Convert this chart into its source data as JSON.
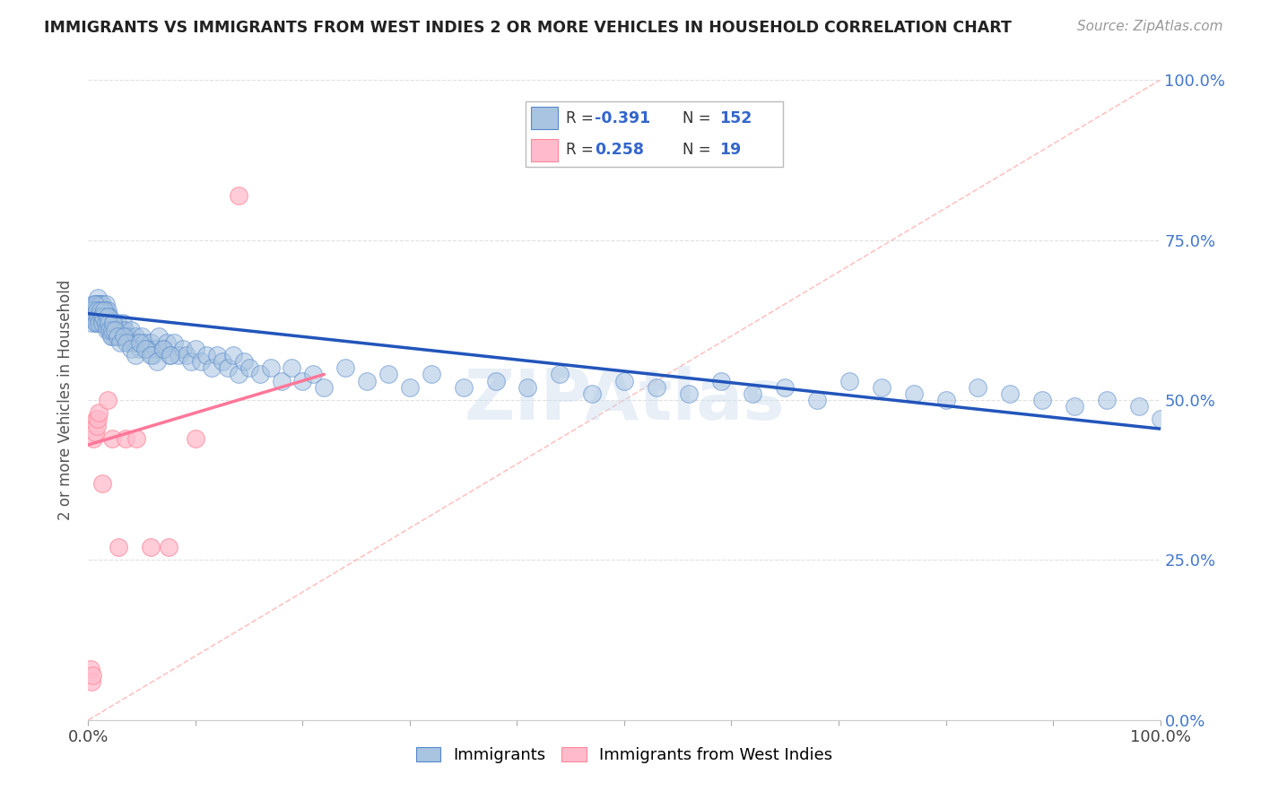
{
  "title": "IMMIGRANTS VS IMMIGRANTS FROM WEST INDIES 2 OR MORE VEHICLES IN HOUSEHOLD CORRELATION CHART",
  "source": "Source: ZipAtlas.com",
  "ylabel": "2 or more Vehicles in Household",
  "legend_label1": "Immigrants",
  "legend_label2": "Immigrants from West Indies",
  "color_blue_fill": "#A8C4E0",
  "color_blue_edge": "#5588CC",
  "color_pink_fill": "#FFBBCC",
  "color_pink_edge": "#FF8899",
  "color_trend_blue": "#2255BB",
  "color_trend_pink": "#FF7799",
  "color_diagonal": "#FFCCCC",
  "blue_x": [
    0.003,
    0.004,
    0.005,
    0.005,
    0.006,
    0.006,
    0.007,
    0.007,
    0.008,
    0.008,
    0.009,
    0.009,
    0.009,
    0.01,
    0.01,
    0.01,
    0.011,
    0.011,
    0.012,
    0.012,
    0.013,
    0.013,
    0.013,
    0.014,
    0.014,
    0.015,
    0.015,
    0.016,
    0.016,
    0.017,
    0.017,
    0.018,
    0.018,
    0.019,
    0.019,
    0.02,
    0.02,
    0.021,
    0.022,
    0.022,
    0.023,
    0.024,
    0.025,
    0.026,
    0.027,
    0.028,
    0.029,
    0.03,
    0.031,
    0.032,
    0.034,
    0.035,
    0.037,
    0.038,
    0.04,
    0.042,
    0.044,
    0.046,
    0.048,
    0.05,
    0.052,
    0.055,
    0.058,
    0.06,
    0.063,
    0.066,
    0.07,
    0.073,
    0.076,
    0.08,
    0.084,
    0.088,
    0.092,
    0.096,
    0.1,
    0.105,
    0.11,
    0.115,
    0.12,
    0.125,
    0.13,
    0.135,
    0.14,
    0.145,
    0.15,
    0.16,
    0.17,
    0.18,
    0.19,
    0.2,
    0.21,
    0.22,
    0.24,
    0.26,
    0.28,
    0.3,
    0.32,
    0.35,
    0.38,
    0.41,
    0.44,
    0.47,
    0.5,
    0.53,
    0.56,
    0.59,
    0.62,
    0.65,
    0.68,
    0.71,
    0.74,
    0.77,
    0.8,
    0.83,
    0.86,
    0.89,
    0.92,
    0.95,
    0.98,
    1.0,
    0.004,
    0.005,
    0.006,
    0.007,
    0.008,
    0.009,
    0.01,
    0.011,
    0.012,
    0.013,
    0.014,
    0.015,
    0.016,
    0.017,
    0.018,
    0.019,
    0.02,
    0.021,
    0.022,
    0.023,
    0.025,
    0.027,
    0.03,
    0.033,
    0.036,
    0.04,
    0.044,
    0.048,
    0.053,
    0.058,
    0.064,
    0.07,
    0.077
  ],
  "blue_y": [
    0.62,
    0.63,
    0.65,
    0.64,
    0.63,
    0.64,
    0.65,
    0.62,
    0.64,
    0.65,
    0.63,
    0.64,
    0.66,
    0.63,
    0.65,
    0.64,
    0.63,
    0.65,
    0.64,
    0.62,
    0.63,
    0.64,
    0.65,
    0.63,
    0.64,
    0.62,
    0.63,
    0.64,
    0.65,
    0.63,
    0.62,
    0.64,
    0.63,
    0.62,
    0.61,
    0.63,
    0.62,
    0.61,
    0.62,
    0.6,
    0.61,
    0.62,
    0.6,
    0.61,
    0.62,
    0.6,
    0.61,
    0.6,
    0.61,
    0.62,
    0.61,
    0.6,
    0.6,
    0.59,
    0.61,
    0.59,
    0.6,
    0.59,
    0.58,
    0.6,
    0.59,
    0.58,
    0.59,
    0.57,
    0.58,
    0.6,
    0.58,
    0.59,
    0.57,
    0.59,
    0.57,
    0.58,
    0.57,
    0.56,
    0.58,
    0.56,
    0.57,
    0.55,
    0.57,
    0.56,
    0.55,
    0.57,
    0.54,
    0.56,
    0.55,
    0.54,
    0.55,
    0.53,
    0.55,
    0.53,
    0.54,
    0.52,
    0.55,
    0.53,
    0.54,
    0.52,
    0.54,
    0.52,
    0.53,
    0.52,
    0.54,
    0.51,
    0.53,
    0.52,
    0.51,
    0.53,
    0.51,
    0.52,
    0.5,
    0.53,
    0.52,
    0.51,
    0.5,
    0.52,
    0.51,
    0.5,
    0.49,
    0.5,
    0.49,
    0.47,
    0.64,
    0.63,
    0.65,
    0.62,
    0.64,
    0.63,
    0.62,
    0.64,
    0.63,
    0.62,
    0.63,
    0.64,
    0.62,
    0.61,
    0.63,
    0.62,
    0.61,
    0.6,
    0.61,
    0.62,
    0.61,
    0.6,
    0.59,
    0.6,
    0.59,
    0.58,
    0.57,
    0.59,
    0.58,
    0.57,
    0.56,
    0.58,
    0.57
  ],
  "pink_x": [
    0.002,
    0.003,
    0.004,
    0.005,
    0.006,
    0.007,
    0.008,
    0.009,
    0.01,
    0.013,
    0.018,
    0.022,
    0.028,
    0.035,
    0.045,
    0.058,
    0.075,
    0.1,
    0.14
  ],
  "pink_y": [
    0.08,
    0.06,
    0.07,
    0.44,
    0.45,
    0.47,
    0.46,
    0.47,
    0.48,
    0.37,
    0.5,
    0.44,
    0.27,
    0.44,
    0.44,
    0.27,
    0.27,
    0.44,
    0.82
  ],
  "blue_trend_x0": 0.0,
  "blue_trend_x1": 1.0,
  "blue_trend_y0": 0.635,
  "blue_trend_y1": 0.455,
  "pink_trend_x0": 0.0,
  "pink_trend_x1": 0.22,
  "pink_trend_y0": 0.43,
  "pink_trend_y1": 0.54,
  "xlim": [
    0.0,
    1.0
  ],
  "ylim": [
    0.0,
    1.0
  ],
  "x_ticks": [
    0.0,
    0.1,
    0.2,
    0.3,
    0.4,
    0.5,
    0.6,
    0.7,
    0.8,
    0.9,
    1.0
  ],
  "y_ticks_right": [
    0.0,
    0.25,
    0.5,
    0.75,
    1.0
  ],
  "y_tick_labels_right": [
    "0.0%",
    "25.0%",
    "50.0%",
    "75.0%",
    "100.0%"
  ],
  "x_tick_labels_show": [
    "0.0%",
    "",
    "",
    "",
    "",
    "",
    "",
    "",
    "",
    "",
    "100.0%"
  ],
  "background_color": "#FFFFFF",
  "grid_color": "#E0E0E0"
}
